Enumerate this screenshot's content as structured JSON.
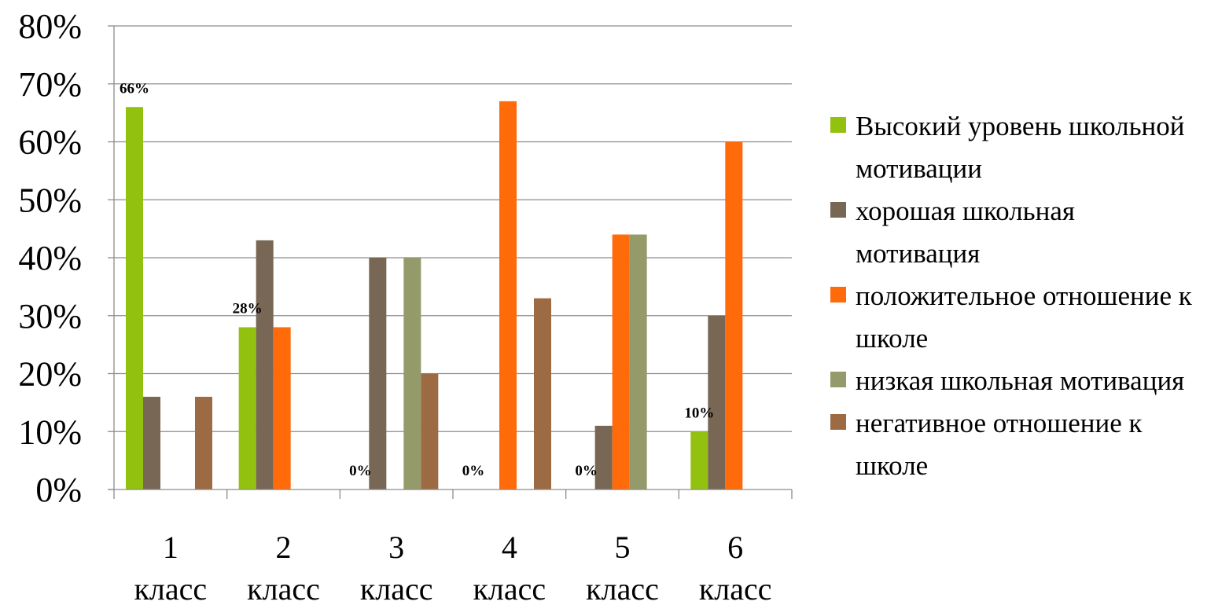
{
  "chart_data": {
    "type": "bar",
    "title": "",
    "xlabel": "",
    "ylabel": "",
    "ylim": [
      0,
      80
    ],
    "y_ticks": [
      "0%",
      "10%",
      "20%",
      "30%",
      "40%",
      "50%",
      "60%",
      "70%",
      "80%"
    ],
    "grid": "horizontal",
    "legend_position": "right",
    "categories": [
      {
        "num": "1",
        "word": "класс"
      },
      {
        "num": "2",
        "word": "класс"
      },
      {
        "num": "3",
        "word": "класс"
      },
      {
        "num": "4",
        "word": "класс"
      },
      {
        "num": "5",
        "word": "класс"
      },
      {
        "num": "6",
        "word": "класс"
      }
    ],
    "series": [
      {
        "name": "Высокий уровень школьной  мотивации",
        "color": "#92c10f",
        "values": [
          66,
          28,
          0,
          0,
          0,
          10
        ]
      },
      {
        "name": "хорошая школьная мотивация",
        "color": "#776754",
        "values": [
          16,
          43,
          40,
          0,
          11,
          30
        ]
      },
      {
        "name": "положительное отношение к школе",
        "color": "#ff6a0a",
        "values": [
          0,
          28,
          0,
          67,
          44,
          60
        ]
      },
      {
        "name": "низкая школьная мотивация",
        "color": "#959a6b",
        "values": [
          0,
          0,
          40,
          0,
          44,
          0
        ]
      },
      {
        "name": "негативное отношение к школе",
        "color": "#9c6b43",
        "values": [
          16,
          0,
          20,
          33,
          0,
          0
        ]
      }
    ],
    "data_labels": [
      {
        "category": 0,
        "series": 0,
        "text": "66%"
      },
      {
        "category": 1,
        "series": 0,
        "text": "28%"
      },
      {
        "category": 2,
        "series": 0,
        "text": "0%"
      },
      {
        "category": 3,
        "series": 0,
        "text": "0%"
      },
      {
        "category": 4,
        "series": 0,
        "text": "0%"
      },
      {
        "category": 5,
        "series": 0,
        "text": "10%"
      }
    ]
  }
}
